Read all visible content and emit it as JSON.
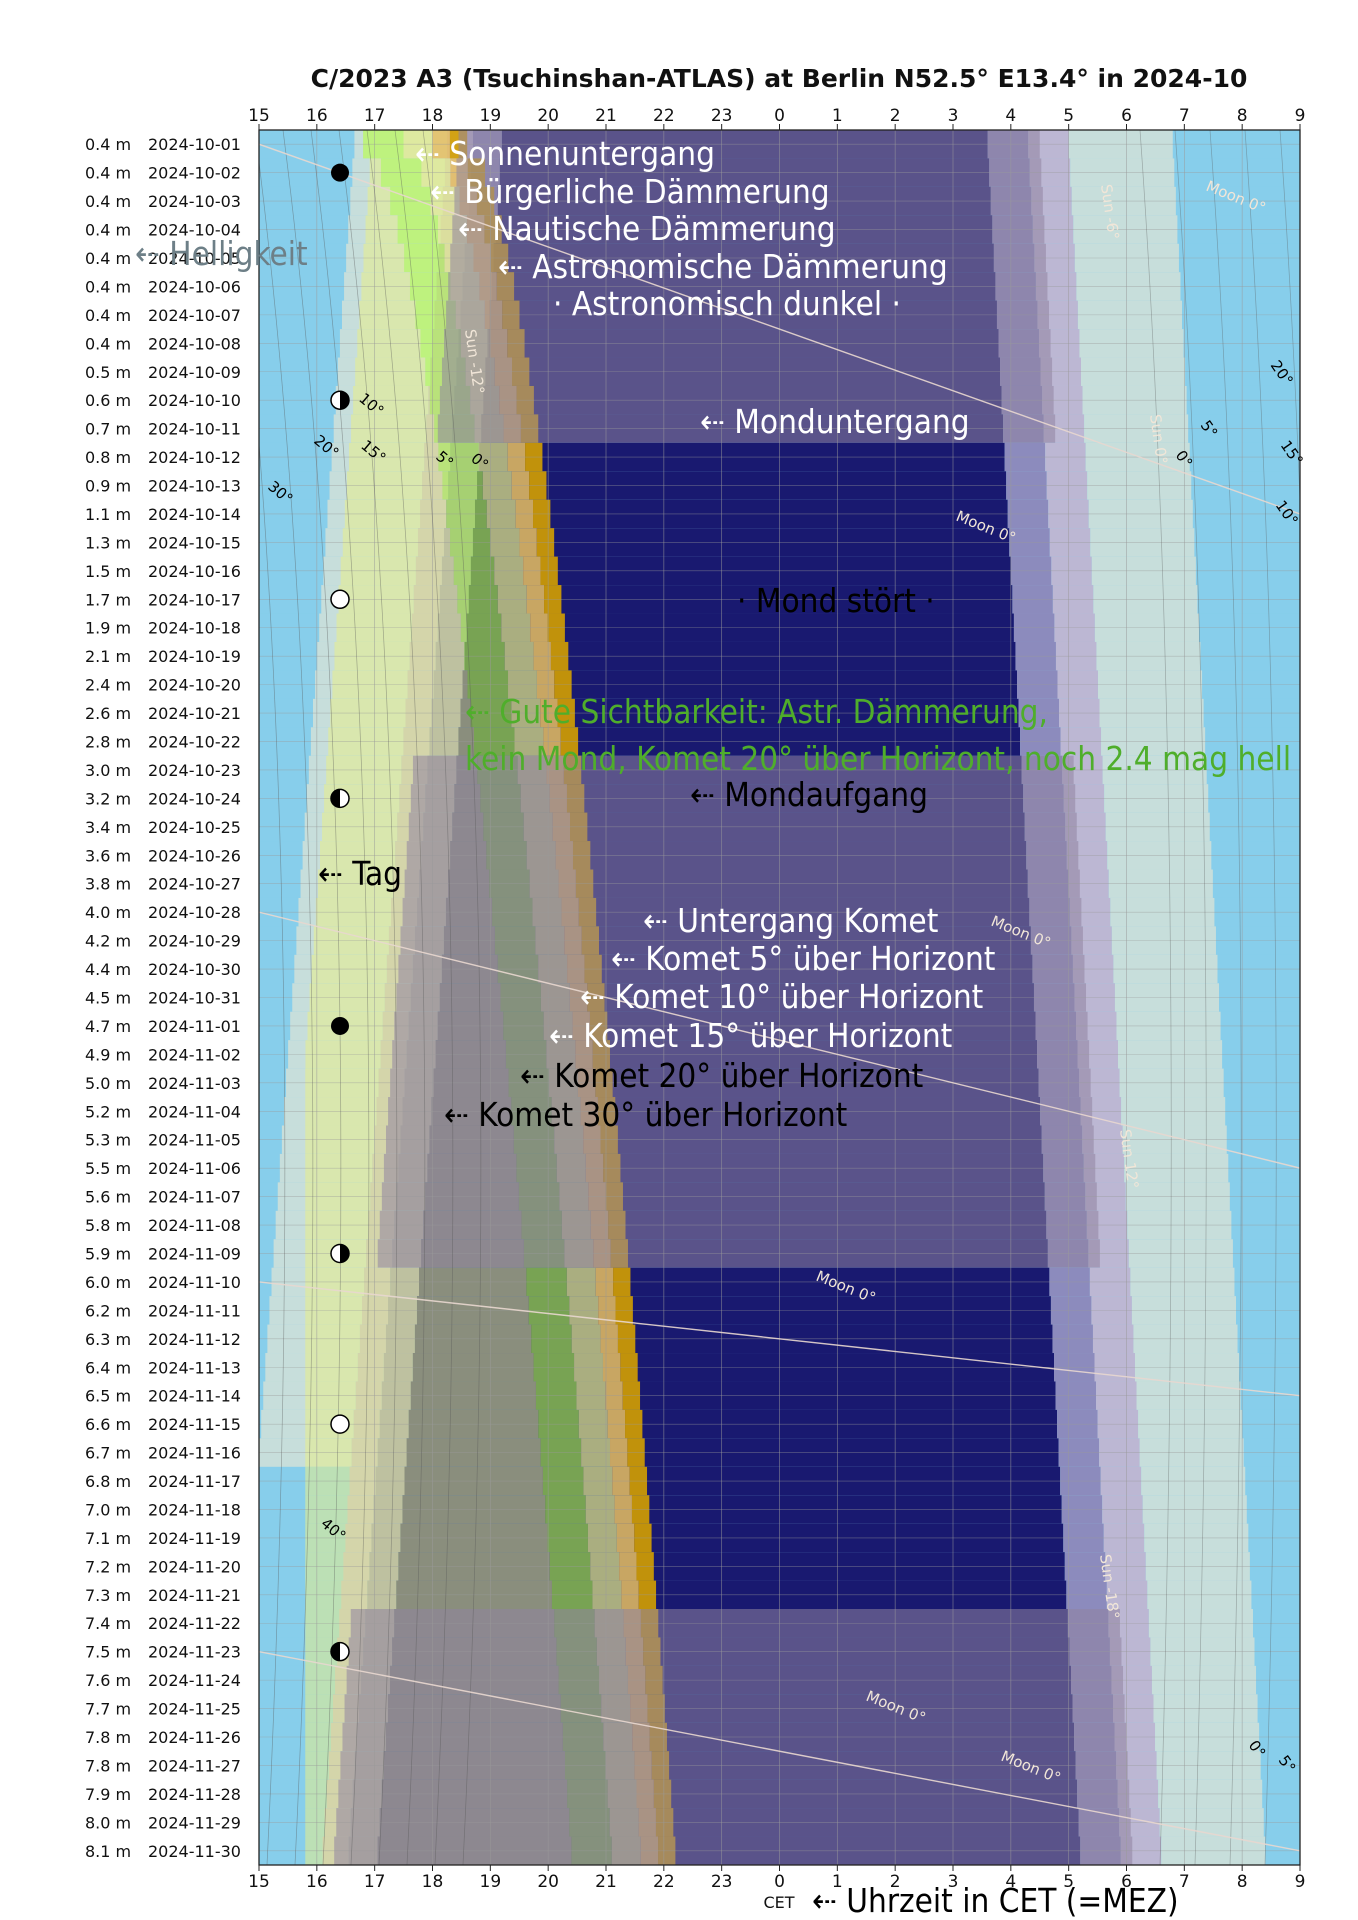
{
  "chart_data": {
    "type": "heatmap",
    "title": "C/2023 A3 (Tsuchinshan-ATLAS) at Berlin N52.5° E13.4° in 2024-10",
    "x_ticks": [
      "15",
      "16",
      "17",
      "18",
      "19",
      "20",
      "21",
      "22",
      "23",
      "0",
      "1",
      "2",
      "3",
      "4",
      "5",
      "6",
      "7",
      "8",
      "9"
    ],
    "x_footer": "CET",
    "x_footer_annotation": "⇠ Uhrzeit in CET (=MEZ)",
    "grid": true,
    "rows": [
      {
        "mag": "0.4 m",
        "date": "2024-10-01",
        "moon_phase": ""
      },
      {
        "mag": "0.4 m",
        "date": "2024-10-02",
        "moon_phase": "new"
      },
      {
        "mag": "0.4 m",
        "date": "2024-10-03",
        "moon_phase": ""
      },
      {
        "mag": "0.4 m",
        "date": "2024-10-04",
        "moon_phase": ""
      },
      {
        "mag": "0.4 m",
        "date": "2024-10-05",
        "moon_phase": ""
      },
      {
        "mag": "0.4 m",
        "date": "2024-10-06",
        "moon_phase": ""
      },
      {
        "mag": "0.4 m",
        "date": "2024-10-07",
        "moon_phase": ""
      },
      {
        "mag": "0.4 m",
        "date": "2024-10-08",
        "moon_phase": ""
      },
      {
        "mag": "0.5 m",
        "date": "2024-10-09",
        "moon_phase": ""
      },
      {
        "mag": "0.6 m",
        "date": "2024-10-10",
        "moon_phase": "first-quarter"
      },
      {
        "mag": "0.7 m",
        "date": "2024-10-11",
        "moon_phase": ""
      },
      {
        "mag": "0.8 m",
        "date": "2024-10-12",
        "moon_phase": ""
      },
      {
        "mag": "0.9 m",
        "date": "2024-10-13",
        "moon_phase": ""
      },
      {
        "mag": "1.1 m",
        "date": "2024-10-14",
        "moon_phase": ""
      },
      {
        "mag": "1.3 m",
        "date": "2024-10-15",
        "moon_phase": ""
      },
      {
        "mag": "1.5 m",
        "date": "2024-10-16",
        "moon_phase": ""
      },
      {
        "mag": "1.7 m",
        "date": "2024-10-17",
        "moon_phase": "full"
      },
      {
        "mag": "1.9 m",
        "date": "2024-10-18",
        "moon_phase": ""
      },
      {
        "mag": "2.1 m",
        "date": "2024-10-19",
        "moon_phase": ""
      },
      {
        "mag": "2.4 m",
        "date": "2024-10-20",
        "moon_phase": ""
      },
      {
        "mag": "2.6 m",
        "date": "2024-10-21",
        "moon_phase": ""
      },
      {
        "mag": "2.8 m",
        "date": "2024-10-22",
        "moon_phase": ""
      },
      {
        "mag": "3.0 m",
        "date": "2024-10-23",
        "moon_phase": ""
      },
      {
        "mag": "3.2 m",
        "date": "2024-10-24",
        "moon_phase": "last-quarter"
      },
      {
        "mag": "3.4 m",
        "date": "2024-10-25",
        "moon_phase": ""
      },
      {
        "mag": "3.6 m",
        "date": "2024-10-26",
        "moon_phase": ""
      },
      {
        "mag": "3.8 m",
        "date": "2024-10-27",
        "moon_phase": ""
      },
      {
        "mag": "4.0 m",
        "date": "2024-10-28",
        "moon_phase": ""
      },
      {
        "mag": "4.2 m",
        "date": "2024-10-29",
        "moon_phase": ""
      },
      {
        "mag": "4.4 m",
        "date": "2024-10-30",
        "moon_phase": ""
      },
      {
        "mag": "4.5 m",
        "date": "2024-10-31",
        "moon_phase": ""
      },
      {
        "mag": "4.7 m",
        "date": "2024-11-01",
        "moon_phase": "new"
      },
      {
        "mag": "4.9 m",
        "date": "2024-11-02",
        "moon_phase": ""
      },
      {
        "mag": "5.0 m",
        "date": "2024-11-03",
        "moon_phase": ""
      },
      {
        "mag": "5.2 m",
        "date": "2024-11-04",
        "moon_phase": ""
      },
      {
        "mag": "5.3 m",
        "date": "2024-11-05",
        "moon_phase": ""
      },
      {
        "mag": "5.5 m",
        "date": "2024-11-06",
        "moon_phase": ""
      },
      {
        "mag": "5.6 m",
        "date": "2024-11-07",
        "moon_phase": ""
      },
      {
        "mag": "5.8 m",
        "date": "2024-11-08",
        "moon_phase": ""
      },
      {
        "mag": "5.9 m",
        "date": "2024-11-09",
        "moon_phase": "first-quarter"
      },
      {
        "mag": "6.0 m",
        "date": "2024-11-10",
        "moon_phase": ""
      },
      {
        "mag": "6.2 m",
        "date": "2024-11-11",
        "moon_phase": ""
      },
      {
        "mag": "6.3 m",
        "date": "2024-11-12",
        "moon_phase": ""
      },
      {
        "mag": "6.4 m",
        "date": "2024-11-13",
        "moon_phase": ""
      },
      {
        "mag": "6.5 m",
        "date": "2024-11-14",
        "moon_phase": ""
      },
      {
        "mag": "6.6 m",
        "date": "2024-11-15",
        "moon_phase": "full"
      },
      {
        "mag": "6.7 m",
        "date": "2024-11-16",
        "moon_phase": ""
      },
      {
        "mag": "6.8 m",
        "date": "2024-11-17",
        "moon_phase": ""
      },
      {
        "mag": "7.0 m",
        "date": "2024-11-18",
        "moon_phase": ""
      },
      {
        "mag": "7.1 m",
        "date": "2024-11-19",
        "moon_phase": ""
      },
      {
        "mag": "7.2 m",
        "date": "2024-11-20",
        "moon_phase": ""
      },
      {
        "mag": "7.3 m",
        "date": "2024-11-21",
        "moon_phase": ""
      },
      {
        "mag": "7.4 m",
        "date": "2024-11-22",
        "moon_phase": ""
      },
      {
        "mag": "7.5 m",
        "date": "2024-11-23",
        "moon_phase": "last-quarter"
      },
      {
        "mag": "7.6 m",
        "date": "2024-11-24",
        "moon_phase": ""
      },
      {
        "mag": "7.7 m",
        "date": "2024-11-25",
        "moon_phase": ""
      },
      {
        "mag": "7.8 m",
        "date": "2024-11-26",
        "moon_phase": ""
      },
      {
        "mag": "7.8 m",
        "date": "2024-11-27",
        "moon_phase": ""
      },
      {
        "mag": "7.9 m",
        "date": "2024-11-28",
        "moon_phase": ""
      },
      {
        "mag": "8.0 m",
        "date": "2024-11-29",
        "moon_phase": ""
      },
      {
        "mag": "8.1 m",
        "date": "2024-11-30",
        "moon_phase": ""
      }
    ],
    "sunset_start_h": 18.25,
    "sunset_end_h": 16.1,
    "sunrise_start_h": 5.0,
    "sunrise_end_h": 6.6,
    "comet_set_start_h": 18.6,
    "comet_set_end_h": 22.2,
    "colors": {
      "day": "#87ceeb",
      "dusk_grey": "#c7dedb",
      "civil": "#bcb7d3",
      "nautical": "#8c8bbd",
      "dark": "#191970",
      "moon_overlay": "#8f84a0",
      "comet_low": "#d4a000",
      "comet_5": "#e8c060",
      "comet_10": "#e8ee88",
      "comet_20": "#b8ff40",
      "good_text": "#4fae2b",
      "white": "#ffffff",
      "black": "#000000"
    },
    "annotations": [
      {
        "text": "⇠ Sonnenuntergang",
        "color": "white"
      },
      {
        "text": "⇠ Bürgerliche Dämmerung",
        "color": "white"
      },
      {
        "text": "⇠ Nautische Dämmerung",
        "color": "white"
      },
      {
        "text": "⇠ Astronomische Dämmerung",
        "color": "white"
      },
      {
        "text": "· Astronomisch dunkel ·",
        "color": "white"
      },
      {
        "text": "⇠ Helligkeit",
        "color": "grey"
      },
      {
        "text": "⇠ Monduntergang",
        "color": "white"
      },
      {
        "text": "· Mond stört ·",
        "color": "black"
      },
      {
        "text": "⇠ Gute Sichtbarkeit: Astr. Dämmerung,",
        "color": "green"
      },
      {
        "text": "kein Mond, Komet 20° über Horizont, noch 2.4 mag hell",
        "color": "green"
      },
      {
        "text": "⇠ Mondaufgang",
        "color": "black"
      },
      {
        "text": "⇠ Tag",
        "color": "black"
      },
      {
        "text": "⇠ Untergang Komet",
        "color": "white"
      },
      {
        "text": "⇠ Komet 5° über Horizont",
        "color": "white"
      },
      {
        "text": "⇠ Komet 10° über Horizont",
        "color": "white"
      },
      {
        "text": "⇠ Komet 15° über Horizont",
        "color": "white"
      },
      {
        "text": "⇠ Komet 20° über Horizont",
        "color": "black"
      },
      {
        "text": "⇠ Komet 30° über Horizont",
        "color": "black"
      }
    ],
    "curve_labels": {
      "sun": [
        "Sun -6°",
        "Sun -12°",
        "Sun 0°",
        "Sun 12°",
        "Sun -18°"
      ],
      "moon": [
        "Moon 0°",
        "Moon 0°",
        "Moon 0°",
        "Moon 0°",
        "Moon 0°",
        "Moon 0°"
      ],
      "comet": [
        "10°",
        "15°",
        "20°",
        "30°",
        "5°",
        "0°",
        "40°"
      ],
      "right": [
        "20°",
        "5°",
        "0°",
        "15°",
        "10°",
        "0°",
        "5°"
      ]
    }
  }
}
